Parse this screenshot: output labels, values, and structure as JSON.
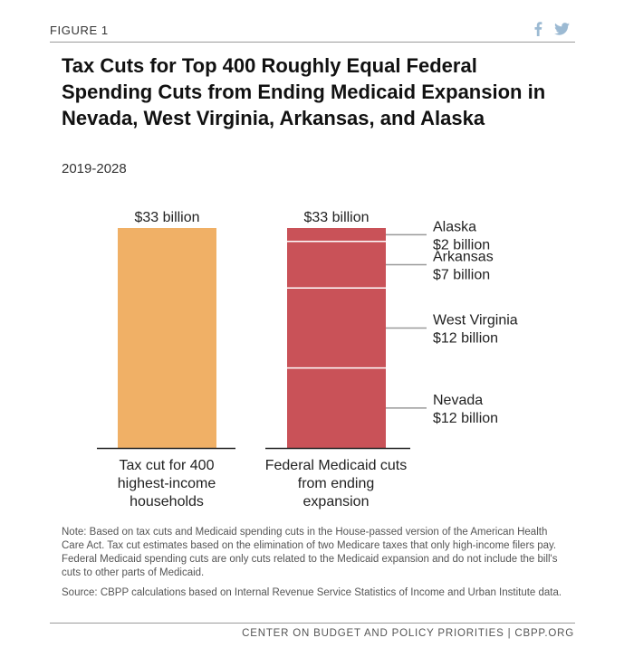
{
  "figure_label": "FIGURE 1",
  "share_icons": [
    "facebook-icon",
    "twitter-icon"
  ],
  "share_glyphs": {
    "facebook": "f",
    "twitter": "🐦"
  },
  "colors": {
    "tax_bar": "#f0b066",
    "medicaid_bar": "#c95258",
    "share_icon": "#9cbad3",
    "rule": "#9a9a9a"
  },
  "chart_data": {
    "type": "bar",
    "title": "Tax Cuts for Top 400 Roughly Equal Federal Spending Cuts from Ending Medicaid Expansion in Nevada, West Virginia, Arkansas, and Alaska",
    "subtitle": "2019-2028",
    "units": "billion dollars",
    "ylim": [
      0,
      33
    ],
    "bars": [
      {
        "category": "Tax cut for 400 highest-income households",
        "label_lines": [
          "Tax cut for 400",
          "highest-income",
          "households"
        ],
        "total": 33,
        "total_label": "$33 billion",
        "color": "#f0b066",
        "segments": [
          {
            "name": "Tax cut",
            "value": 33
          }
        ]
      },
      {
        "category": "Federal Medicaid cuts from ending expansion",
        "label_lines": [
          "Federal Medicaid cuts",
          "from ending",
          "expansion"
        ],
        "total": 33,
        "total_label": "$33 billion",
        "color": "#c95258",
        "segments": [
          {
            "name": "Nevada",
            "value": 12,
            "value_label": "$12 billion"
          },
          {
            "name": "West Virginia",
            "value": 12,
            "value_label": "$12 billion"
          },
          {
            "name": "Arkansas",
            "value": 7,
            "value_label": "$7 billion"
          },
          {
            "name": "Alaska",
            "value": 2,
            "value_label": "$2 billion"
          }
        ]
      }
    ]
  },
  "notes": {
    "note": "Note: Based on tax cuts and Medicaid spending cuts in the House-passed version of the American Health Care Act.  Tax cut estimates based on the elimination of two Medicare taxes that only high-income filers pay.  Federal Medicaid spending cuts are only cuts related to the Medicaid expansion and do not include the bill's cuts to other parts of Medicaid.",
    "source": "Source: CBPP calculations based on Internal Revenue Service Statistics of Income and Urban Institute data."
  },
  "footer": "CENTER ON BUDGET AND POLICY PRIORITIES | CBPP.ORG"
}
